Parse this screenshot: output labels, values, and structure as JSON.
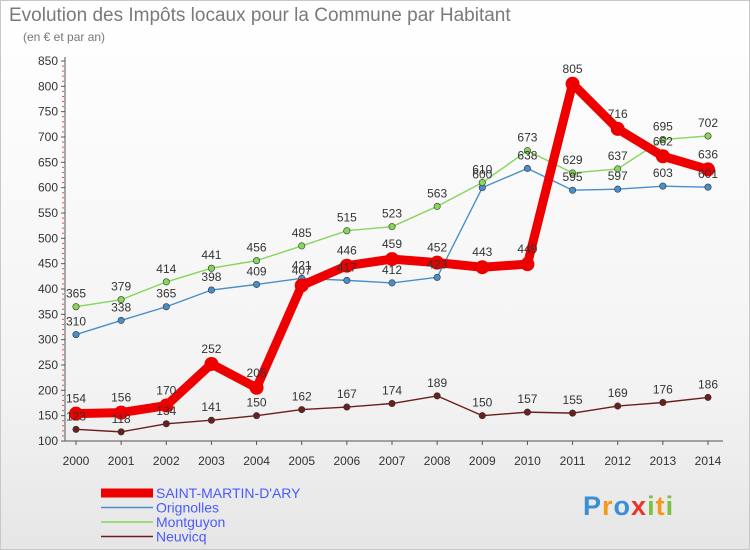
{
  "header": {
    "title": "Evolution des Impôts locaux pour la Commune par Habitant",
    "subtitle": "(en € et par an)"
  },
  "logo": {
    "text": "Proxiti",
    "letters": [
      {
        "ch": "P",
        "color": "#3b8fd4"
      },
      {
        "ch": "r",
        "color": "#f29a1a"
      },
      {
        "ch": "o",
        "color": "#3b8fd4"
      },
      {
        "ch": "x",
        "color": "#e8342a"
      },
      {
        "ch": "i",
        "color": "#7cc242"
      },
      {
        "ch": "t",
        "color": "#f29a1a"
      },
      {
        "ch": "i",
        "color": "#7cc242"
      }
    ]
  },
  "chart_data": {
    "type": "line",
    "title": "Evolution des Impôts locaux pour la Commune par Habitant",
    "ylabel": "(en € et par an)",
    "xlabel": "",
    "ylim": [
      100,
      850
    ],
    "yticks": [
      100,
      150,
      200,
      250,
      300,
      350,
      400,
      450,
      500,
      550,
      600,
      650,
      700,
      750,
      800,
      850
    ],
    "categories": [
      "2000",
      "2001",
      "2002",
      "2003",
      "2004",
      "2005",
      "2006",
      "2007",
      "2008",
      "2009",
      "2010",
      "2011",
      "2012",
      "2013",
      "2014"
    ],
    "grid": false,
    "legend": "bottom-left",
    "series": [
      {
        "name": "Neuvicq",
        "color": "#6b1e1e",
        "values": [
          123,
          118,
          134,
          141,
          150,
          162,
          167,
          174,
          189,
          150,
          157,
          155,
          169,
          176,
          186
        ]
      },
      {
        "name": "Orignolles",
        "color": "#4a8ec9",
        "values": [
          310,
          338,
          365,
          398,
          409,
          421,
          417,
          412,
          423,
          600,
          638,
          595,
          597,
          603,
          601
        ]
      },
      {
        "name": "Montguyon",
        "color": "#86d65a",
        "values": [
          365,
          379,
          414,
          441,
          456,
          485,
          515,
          523,
          563,
          610,
          673,
          629,
          637,
          695,
          702
        ]
      },
      {
        "name": "SAINT-MARTIN-D'ARY",
        "color": "#ee0000",
        "values": [
          154,
          156,
          170,
          252,
          205,
          407,
          446,
          459,
          452,
          443,
          449,
          805,
          716,
          662,
          636
        ]
      }
    ]
  }
}
